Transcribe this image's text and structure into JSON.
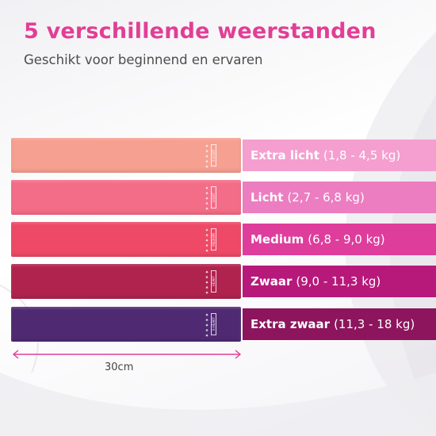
{
  "header": {
    "title": "5 verschillende weerstanden",
    "subtitle": "Geschikt voor beginnend en ervaren"
  },
  "bands": [
    {
      "name": "Extra licht",
      "range": "(1,8 - 4,5 kg)",
      "tag": "X-LIGHT",
      "stars": "★★★★★",
      "band_color": "#f6a092",
      "label_color": "#f49fcf"
    },
    {
      "name": "Licht",
      "range": "(2,7 - 6,8 kg)",
      "tag": "LIGHT",
      "stars": "★★★★★",
      "band_color": "#f46d88",
      "label_color": "#ec7dc1"
    },
    {
      "name": "Medium",
      "range": "(6,8 - 9,0 kg)",
      "tag": "MEDIUM",
      "stars": "★★★★★",
      "band_color": "#ee4966",
      "label_color": "#de3d9c"
    },
    {
      "name": "Zwaar",
      "range": "(9,0 - 11,3 kg)",
      "tag": "HEAVY",
      "stars": "★★★★★",
      "band_color": "#b1234f",
      "label_color": "#b7197a"
    },
    {
      "name": "Extra zwaar",
      "range": "(11,3 - 18 kg)",
      "tag": "X-HEAVY",
      "stars": "★★★★★",
      "band_color": "#4f2a72",
      "label_color": "#8c155d"
    }
  ],
  "measurement": {
    "label": "30cm",
    "arrow_color": "#e23e95"
  }
}
